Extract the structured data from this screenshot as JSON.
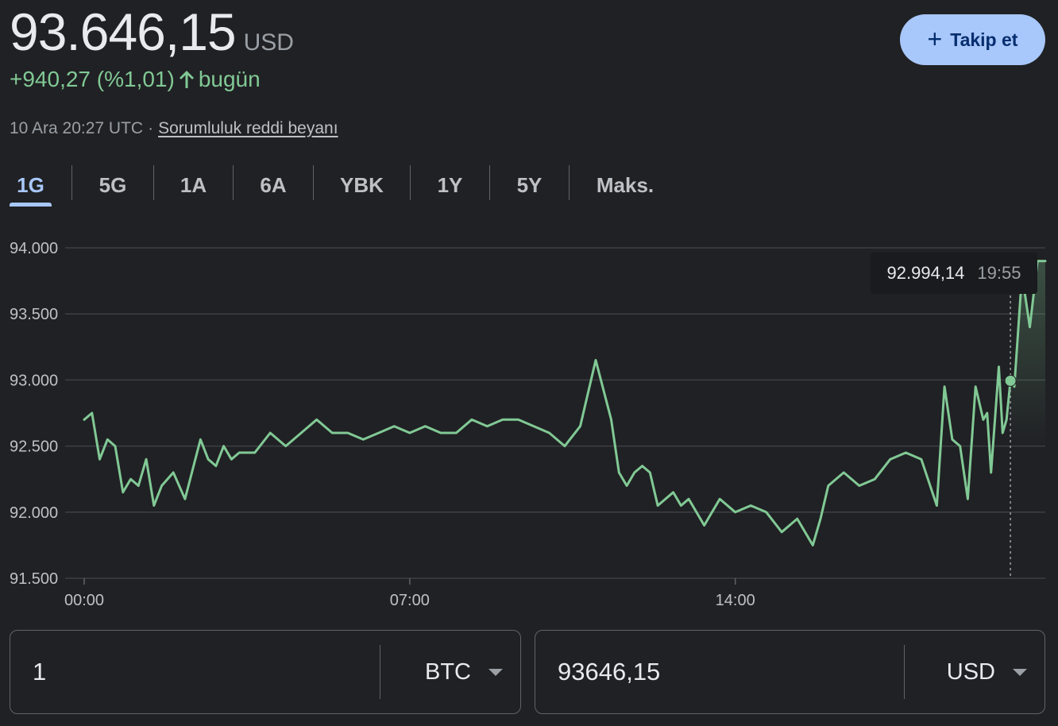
{
  "quote": {
    "price": "93.646,15",
    "currency": "USD",
    "change": "+940,27 (%1,01)",
    "change_period": "bugün",
    "timestamp": "10 Ara 20:27 UTC",
    "separator": "·",
    "disclaimer": "Sorumluluk reddi beyanı",
    "accent_color": "#81c995"
  },
  "follow_button": {
    "label": "Takip et",
    "icon": "plus-icon"
  },
  "tabs": [
    {
      "label": "1G",
      "active": true
    },
    {
      "label": "5G",
      "active": false
    },
    {
      "label": "1A",
      "active": false
    },
    {
      "label": "6A",
      "active": false
    },
    {
      "label": "YBK",
      "active": false
    },
    {
      "label": "1Y",
      "active": false
    },
    {
      "label": "5Y",
      "active": false
    },
    {
      "label": "Maks.",
      "active": false
    }
  ],
  "tooltip": {
    "value": "92.994,14",
    "time": "19:55"
  },
  "chart_data": {
    "type": "line",
    "ylim": [
      91500,
      94000
    ],
    "y_ticks": [
      94000,
      93500,
      93000,
      92500,
      92000,
      91500
    ],
    "y_tick_labels": [
      "94.000",
      "93.500",
      "93.000",
      "92.500",
      "92.000",
      "91.500"
    ],
    "x_ticks": [
      0,
      420,
      840
    ],
    "x_tick_labels": [
      "00:00",
      "07:00",
      "14:00"
    ],
    "xlim": [
      0,
      1240
    ],
    "hover_x": 1195,
    "hover_y": 92994.14,
    "series": [
      {
        "color": "#81c995",
        "x": [
          0,
          10,
          20,
          30,
          40,
          50,
          60,
          70,
          80,
          90,
          100,
          115,
          130,
          150,
          160,
          170,
          180,
          190,
          200,
          220,
          240,
          260,
          280,
          300,
          320,
          340,
          360,
          380,
          400,
          420,
          440,
          460,
          480,
          500,
          520,
          540,
          560,
          580,
          600,
          620,
          640,
          660,
          680,
          690,
          700,
          710,
          720,
          730,
          740,
          760,
          770,
          780,
          800,
          820,
          840,
          860,
          880,
          900,
          920,
          940,
          950,
          960,
          980,
          1000,
          1020,
          1040,
          1060,
          1080,
          1100,
          1110,
          1120,
          1130,
          1140,
          1150,
          1160,
          1165,
          1170,
          1180,
          1185,
          1190,
          1195,
          1200,
          1210,
          1220,
          1230,
          1240
        ],
        "y": [
          92700,
          92750,
          92400,
          92550,
          92500,
          92150,
          92250,
          92200,
          92400,
          92050,
          92200,
          92300,
          92100,
          92550,
          92400,
          92350,
          92500,
          92400,
          92450,
          92450,
          92600,
          92500,
          92600,
          92700,
          92600,
          92600,
          92550,
          92600,
          92650,
          92600,
          92650,
          92600,
          92600,
          92700,
          92650,
          92700,
          92700,
          92650,
          92600,
          92500,
          92650,
          93150,
          92700,
          92300,
          92200,
          92300,
          92350,
          92300,
          92050,
          92150,
          92050,
          92100,
          91900,
          92100,
          92000,
          92050,
          92000,
          91850,
          91950,
          91750,
          91950,
          92200,
          92300,
          92200,
          92250,
          92400,
          92450,
          92400,
          92050,
          92950,
          92550,
          92500,
          92100,
          92950,
          92700,
          92750,
          92300,
          93100,
          92600,
          92700,
          92994,
          92950,
          93800,
          93400,
          93900,
          93900
        ]
      }
    ]
  },
  "converter": {
    "from_amount": "1",
    "from_currency": "BTC",
    "to_amount": "93646,15",
    "to_currency": "USD"
  }
}
